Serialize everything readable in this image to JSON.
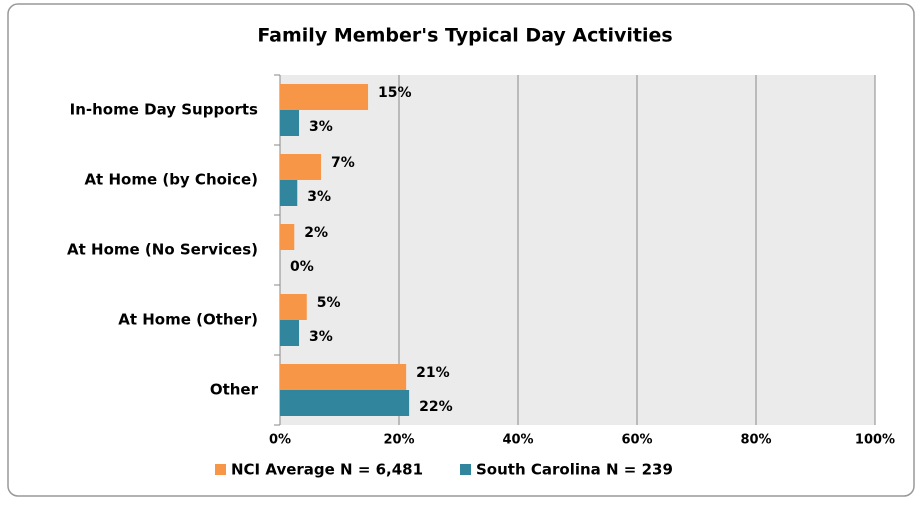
{
  "chart_data": {
    "type": "bar",
    "orientation": "horizontal",
    "title": "Family Member's Typical Day Activities",
    "categories": [
      "In-home Day Supports",
      "At Home (by Choice)",
      "At Home (No Services)",
      "At Home (Other)",
      "Other"
    ],
    "series": [
      {
        "name": "NCI Average N = 6,481",
        "color": "#f79646",
        "values": [
          14.8,
          6.9,
          2.4,
          4.5,
          21.2
        ],
        "value_labels": [
          "15%",
          "7%",
          "2%",
          "5%",
          "21%"
        ]
      },
      {
        "name": "South Carolina N = 239",
        "color": "#31859c",
        "values": [
          3.2,
          2.9,
          0,
          3.2,
          21.7
        ],
        "value_labels": [
          "3%",
          "3%",
          "0%",
          "3%",
          "22%"
        ]
      }
    ],
    "xlim": [
      0,
      100
    ],
    "xticks": [
      {
        "value": 0,
        "label": "0%"
      },
      {
        "value": 20,
        "label": "20%"
      },
      {
        "value": 40,
        "label": "40%"
      },
      {
        "value": 60,
        "label": "60%"
      },
      {
        "value": 80,
        "label": "80%"
      },
      {
        "value": 100,
        "label": "100%"
      }
    ],
    "grid": true,
    "legend": "bottom"
  }
}
